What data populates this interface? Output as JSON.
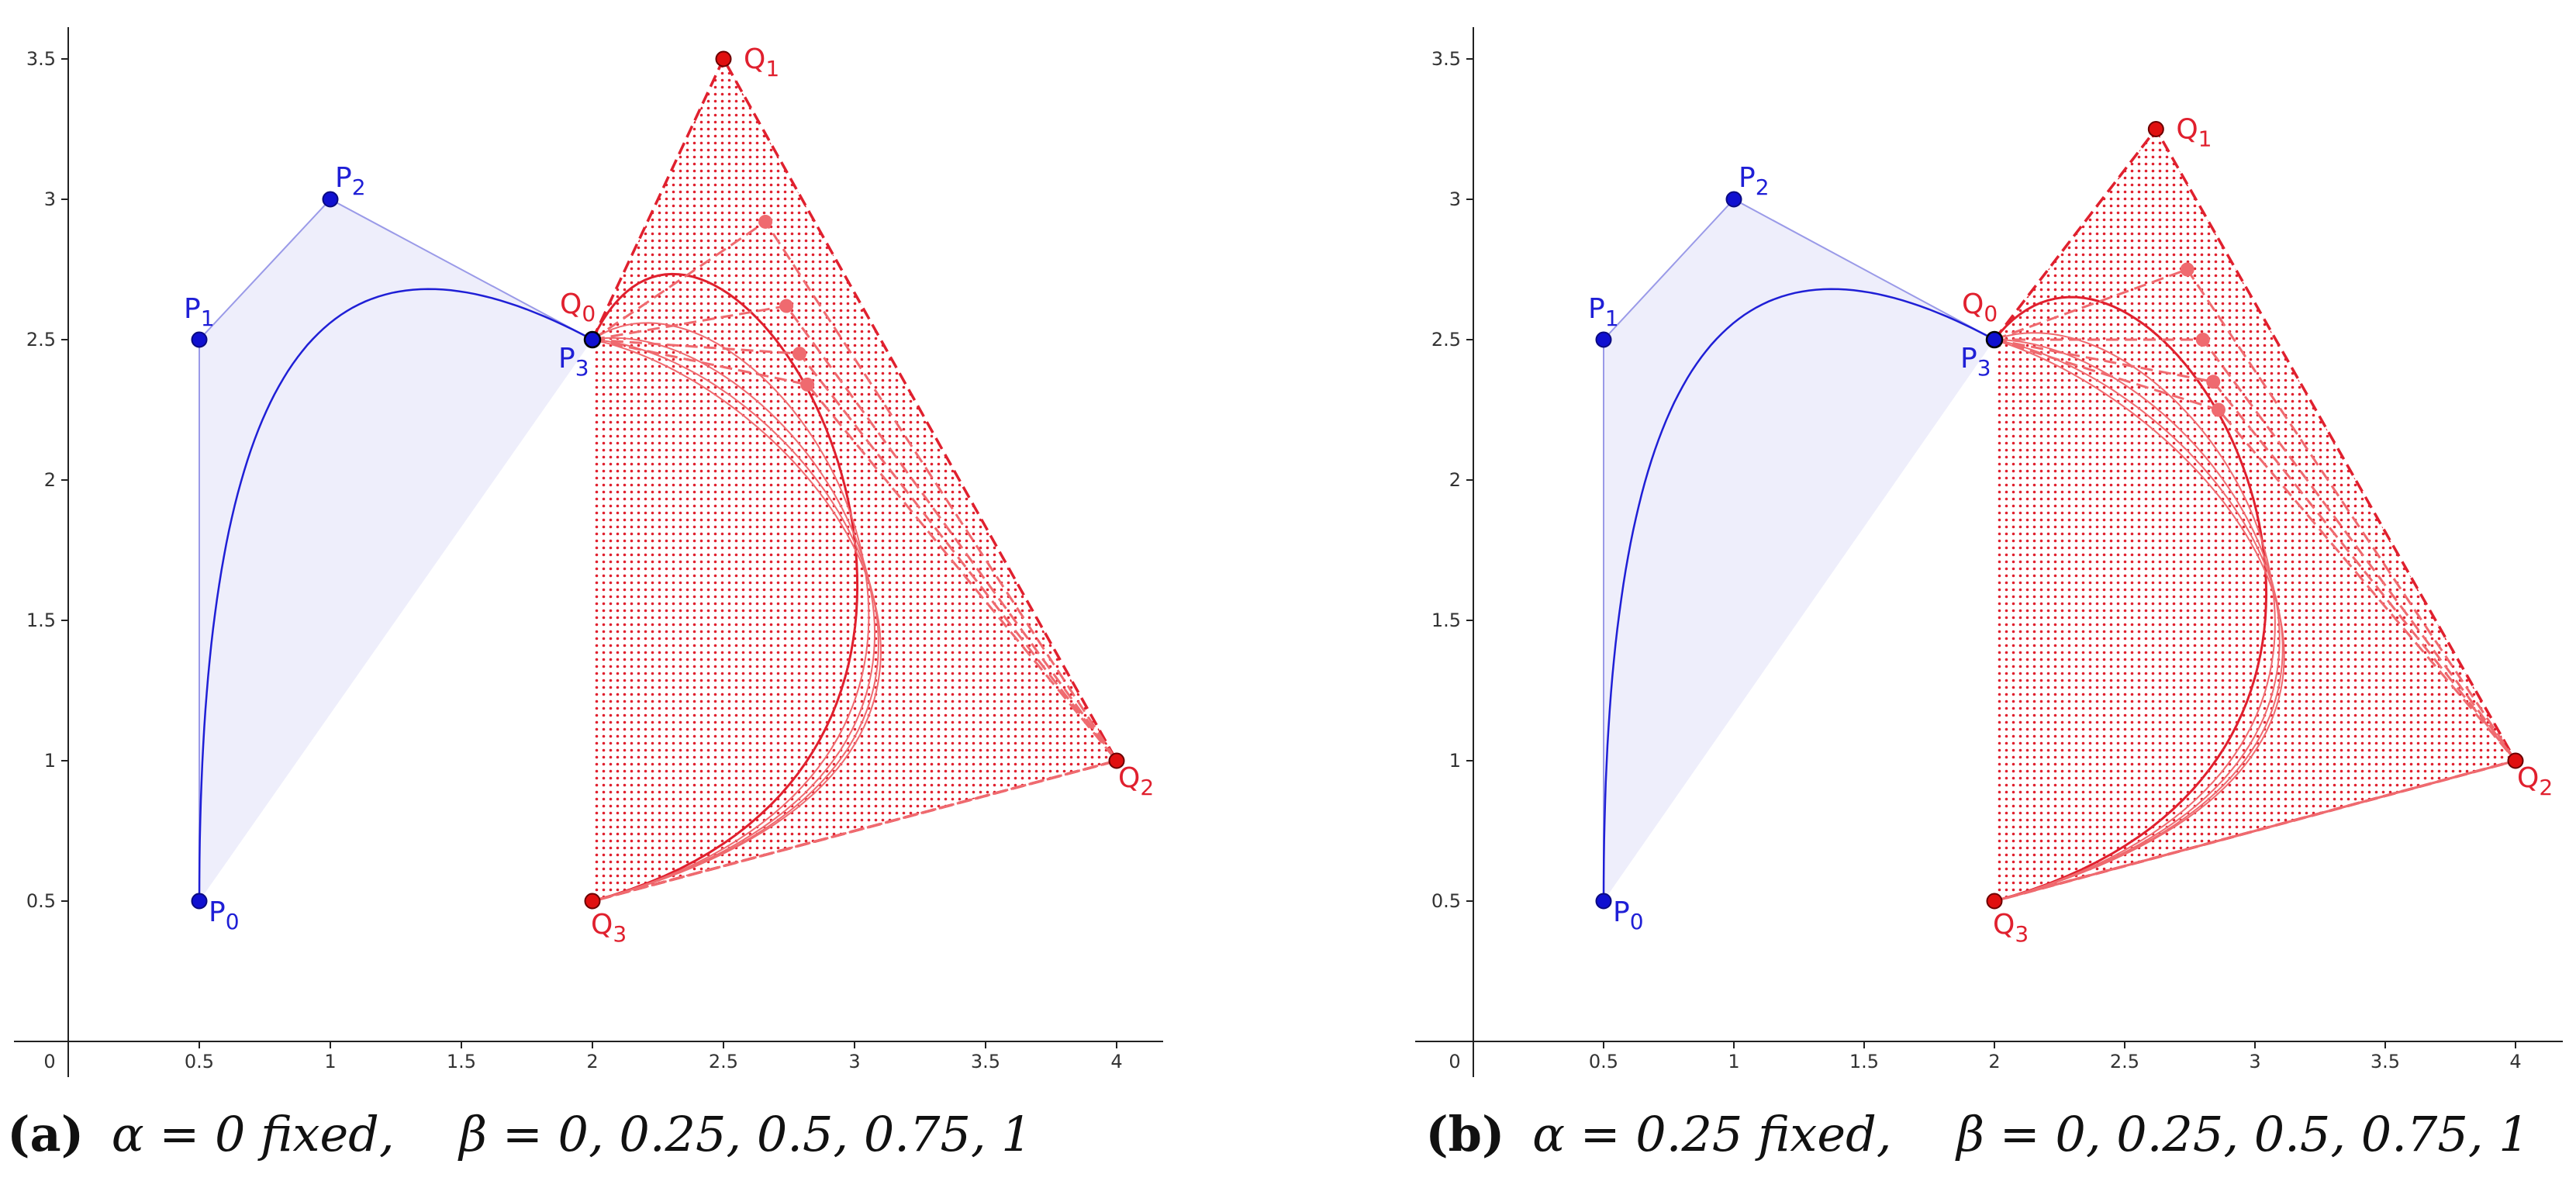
{
  "chart_data": [
    {
      "type": "scatter",
      "panel_tag": "(a)",
      "caption_alpha": "α = 0 fixed,",
      "caption_beta": "β = 0, 0.25, 0.5, 0.75, 1",
      "xlim": [
        -0.2,
        4.2
      ],
      "ylim": [
        0,
        3.55
      ],
      "x_ticks": [
        "0",
        "0.5",
        "1",
        "1.5",
        "2",
        "2.5",
        "3",
        "3.5",
        "4"
      ],
      "y_ticks": [
        "0.5",
        "1",
        "1.5",
        "2",
        "2.5",
        "3",
        "3.5"
      ],
      "colors": {
        "blue": "#1f1fd6",
        "blue_fill": "#eeeefb",
        "red": "#e0202e",
        "red_light": "#ef6a6f"
      },
      "P": [
        {
          "name": "P",
          "sub": "0",
          "x": 0.5,
          "y": 0.5
        },
        {
          "name": "P",
          "sub": "1",
          "x": 0.5,
          "y": 2.5
        },
        {
          "name": "P",
          "sub": "2",
          "x": 1.0,
          "y": 3.0
        },
        {
          "name": "P",
          "sub": "3",
          "x": 2.0,
          "y": 2.5
        }
      ],
      "Q": [
        {
          "name": "Q",
          "sub": "0",
          "x": 2.0,
          "y": 2.5
        },
        {
          "name": "Q",
          "sub": "1",
          "x": 2.5,
          "y": 3.5
        },
        {
          "name": "Q",
          "sub": "2",
          "x": 4.0,
          "y": 1.0
        },
        {
          "name": "Q",
          "sub": "3",
          "x": 2.0,
          "y": 0.5
        }
      ],
      "Q1_variants": [
        {
          "beta": 0,
          "x": 2.5,
          "y": 3.5
        },
        {
          "beta": 0.25,
          "x": 2.66,
          "y": 2.92
        },
        {
          "beta": 0.5,
          "x": 2.74,
          "y": 2.62
        },
        {
          "beta": 0.75,
          "x": 2.79,
          "y": 2.45
        },
        {
          "beta": 1,
          "x": 2.82,
          "y": 2.34
        }
      ]
    },
    {
      "type": "scatter",
      "panel_tag": "(b)",
      "caption_alpha": "α = 0.25 fixed,",
      "caption_beta": "β = 0, 0.25, 0.5, 0.75, 1",
      "xlim": [
        -0.2,
        4.2
      ],
      "ylim": [
        0,
        3.55
      ],
      "x_ticks": [
        "0",
        "0.5",
        "1",
        "1.5",
        "2",
        "2.5",
        "3",
        "3.5",
        "4"
      ],
      "y_ticks": [
        "0.5",
        "1",
        "1.5",
        "2",
        "2.5",
        "3",
        "3.5"
      ],
      "colors": {
        "blue": "#1f1fd6",
        "blue_fill": "#eeeefb",
        "red": "#e0202e",
        "red_light": "#ef6a6f"
      },
      "P": [
        {
          "name": "P",
          "sub": "0",
          "x": 0.5,
          "y": 0.5
        },
        {
          "name": "P",
          "sub": "1",
          "x": 0.5,
          "y": 2.5
        },
        {
          "name": "P",
          "sub": "2",
          "x": 1.0,
          "y": 3.0
        },
        {
          "name": "P",
          "sub": "3",
          "x": 2.0,
          "y": 2.5
        }
      ],
      "Q": [
        {
          "name": "Q",
          "sub": "0",
          "x": 2.0,
          "y": 2.5
        },
        {
          "name": "Q",
          "sub": "1",
          "x": 2.62,
          "y": 3.25
        },
        {
          "name": "Q",
          "sub": "2",
          "x": 4.0,
          "y": 1.0
        },
        {
          "name": "Q",
          "sub": "3",
          "x": 2.0,
          "y": 0.5
        }
      ],
      "Q1_variants": [
        {
          "beta": 0,
          "x": 2.62,
          "y": 3.25
        },
        {
          "beta": 0.25,
          "x": 2.74,
          "y": 2.75
        },
        {
          "beta": 0.5,
          "x": 2.8,
          "y": 2.5
        },
        {
          "beta": 0.75,
          "x": 2.84,
          "y": 2.35
        },
        {
          "beta": 1,
          "x": 2.86,
          "y": 2.25
        }
      ]
    }
  ]
}
